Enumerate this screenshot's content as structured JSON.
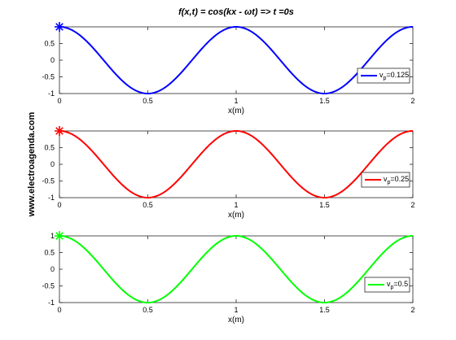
{
  "figure": {
    "title": "f(x,t) = cos(kx - ωt) => t =0s",
    "watermark": "www.electroagenda.com"
  },
  "chart_data": [
    {
      "type": "line",
      "function": "cos(2*pi*x)",
      "xlabel": "x(m)",
      "ylabel": "",
      "xlim": [
        0,
        2
      ],
      "ylim": [
        -1,
        1
      ],
      "x_ticks": [
        0,
        0.5,
        1,
        1.5,
        2
      ],
      "x_tick_labels": [
        "0",
        "0.5",
        "1",
        "1.5",
        "2"
      ],
      "y_ticks": [
        -1,
        -0.5,
        0,
        0.5
      ],
      "y_tick_labels": [
        "-1",
        "-0.5",
        "0",
        "0.5"
      ],
      "x": [
        0,
        0.25,
        0.5,
        0.75,
        1,
        1.25,
        1.5,
        1.75,
        2
      ],
      "series": [
        {
          "legend_main": "v",
          "legend_sub": "p",
          "legend_value": "=0.125",
          "color": "#0000ff",
          "values": [
            1,
            0,
            -1,
            0,
            1,
            0,
            -1,
            0,
            1
          ]
        }
      ],
      "marker": {
        "x": 0,
        "y": 1,
        "symbol": "asterisk"
      },
      "legend_position": "right"
    },
    {
      "type": "line",
      "function": "cos(2*pi*x)",
      "xlabel": "x(m)",
      "ylabel": "",
      "xlim": [
        0,
        2
      ],
      "ylim": [
        -1,
        1
      ],
      "x_ticks": [
        0,
        0.5,
        1,
        1.5,
        2
      ],
      "x_tick_labels": [
        "0",
        "0.5",
        "1",
        "1.5",
        "2"
      ],
      "y_ticks": [
        -1,
        -0.5,
        0,
        0.5
      ],
      "y_tick_labels": [
        "-1",
        "-0.5",
        "0",
        "0.5"
      ],
      "x": [
        0,
        0.25,
        0.5,
        0.75,
        1,
        1.25,
        1.5,
        1.75,
        2
      ],
      "series": [
        {
          "legend_main": "v",
          "legend_sub": "p",
          "legend_value": "=0.25",
          "color": "#ff0000",
          "values": [
            1,
            0,
            -1,
            0,
            1,
            0,
            -1,
            0,
            1
          ]
        }
      ],
      "marker": {
        "x": 0,
        "y": 1,
        "symbol": "asterisk"
      },
      "legend_position": "right"
    },
    {
      "type": "line",
      "function": "cos(2*pi*x)",
      "xlabel": "x(m)",
      "ylabel": "",
      "xlim": [
        0,
        2
      ],
      "ylim": [
        -1,
        1
      ],
      "x_ticks": [
        0,
        0.5,
        1,
        1.5,
        2
      ],
      "x_tick_labels": [
        "0",
        "0.5",
        "1",
        "1.5",
        "2"
      ],
      "y_ticks": [
        -1,
        -0.5,
        0,
        0.5,
        1
      ],
      "y_tick_labels": [
        "-1",
        "-0.5",
        "0",
        "0.5",
        "1"
      ],
      "x": [
        0,
        0.25,
        0.5,
        0.75,
        1,
        1.25,
        1.5,
        1.75,
        2
      ],
      "series": [
        {
          "legend_main": "v",
          "legend_sub": "p",
          "legend_value": "=0.5",
          "color": "#00ff00",
          "values": [
            1,
            0,
            -1,
            0,
            1,
            0,
            -1,
            0,
            1
          ]
        }
      ],
      "marker": {
        "x": 0,
        "y": 1,
        "symbol": "asterisk"
      },
      "legend_position": "right"
    }
  ]
}
